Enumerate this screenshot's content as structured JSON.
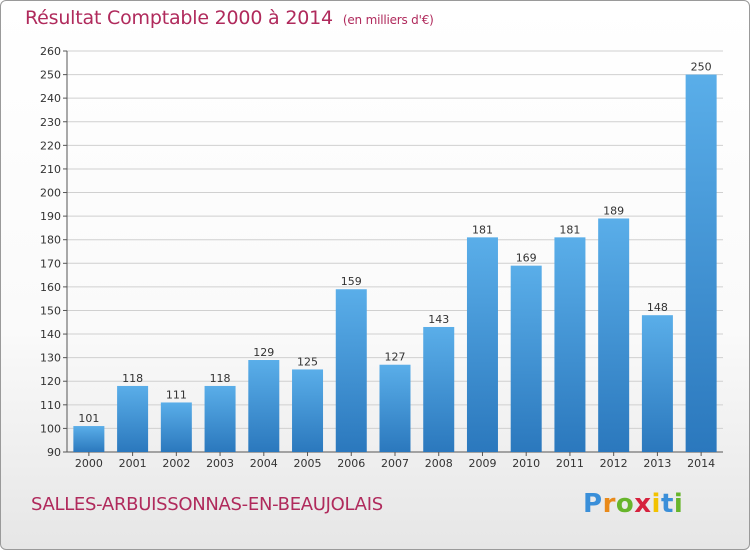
{
  "header": {
    "title": "Résultat Comptable 2000 à 2014",
    "subtitle": "(en milliers d'€)"
  },
  "footer": {
    "city": "SALLES-ARBUISSONNAS-EN-BEAUJOLAIS",
    "logo_letters": [
      "P",
      "r",
      "o",
      "x",
      "i",
      "t",
      "i"
    ],
    "logo_colors": [
      "#3a8fd9",
      "#e98a1a",
      "#67b52b",
      "#d6213d",
      "#f2c200",
      "#3a8fd9",
      "#67b52b"
    ]
  },
  "colors": {
    "bar": "#4a9de0",
    "bar_dark": "#2f7fc4",
    "grid": "#d0d0d0",
    "text": "#333333"
  },
  "chart_data": {
    "type": "bar",
    "categories": [
      "2000",
      "2001",
      "2002",
      "2003",
      "2004",
      "2005",
      "2006",
      "2007",
      "2008",
      "2009",
      "2010",
      "2011",
      "2012",
      "2013",
      "2014"
    ],
    "values": [
      101,
      118,
      111,
      118,
      129,
      125,
      159,
      127,
      143,
      181,
      169,
      181,
      189,
      148,
      250
    ],
    "data_labels": [
      "101",
      "118",
      "111",
      "118",
      "129",
      "125",
      "159",
      "127",
      "143",
      "181",
      "169",
      "181",
      "189",
      "148",
      "250"
    ],
    "title": "Résultat Comptable 2000 à 2014",
    "ylim": [
      90,
      260
    ],
    "yticks": [
      90,
      100,
      110,
      120,
      130,
      140,
      150,
      160,
      170,
      180,
      190,
      200,
      210,
      220,
      230,
      240,
      250,
      260
    ],
    "ytick_labels": [
      "90",
      "100",
      "110",
      "120",
      "130",
      "140",
      "150",
      "160",
      "170",
      "180",
      "190",
      "200",
      "210",
      "220",
      "230",
      "240",
      "250",
      "260"
    ],
    "grid": true,
    "legend": "none"
  }
}
